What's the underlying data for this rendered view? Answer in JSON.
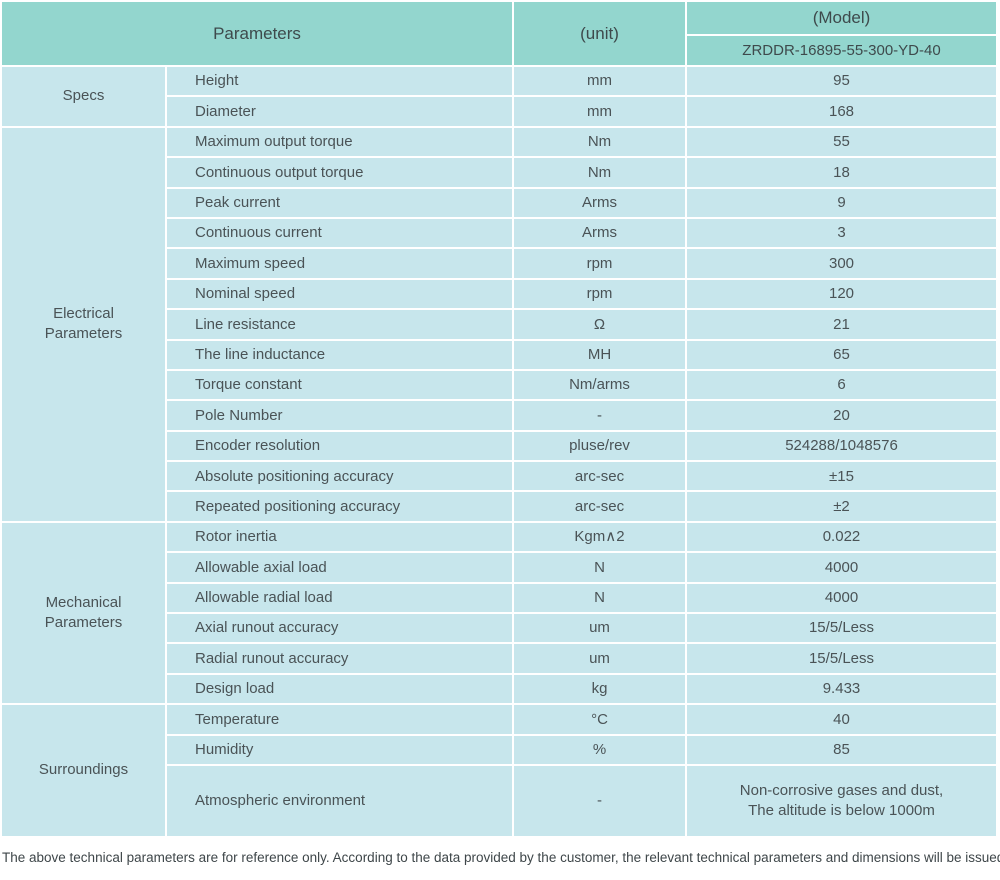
{
  "header": {
    "parameters_label": "Parameters",
    "unit_label": "(unit)",
    "model_label": "(Model)",
    "model_value": "ZRDDR-16895-55-300-YD-40"
  },
  "sections": [
    {
      "name": "Specs",
      "rows": [
        {
          "param": "Height",
          "unit": "mm",
          "value": "95"
        },
        {
          "param": "Diameter",
          "unit": "mm",
          "value": "168"
        }
      ]
    },
    {
      "name": "Electrical Parameters",
      "rows": [
        {
          "param": "Maximum output torque",
          "unit": "Nm",
          "value": "55"
        },
        {
          "param": "Continuous output torque",
          "unit": "Nm",
          "value": "18"
        },
        {
          "param": "Peak current",
          "unit": "Arms",
          "value": "9"
        },
        {
          "param": "Continuous current",
          "unit": "Arms",
          "value": "3"
        },
        {
          "param": "Maximum speed",
          "unit": "rpm",
          "value": "300"
        },
        {
          "param": "Nominal speed",
          "unit": "rpm",
          "value": "120"
        },
        {
          "param": "Line resistance",
          "unit": "Ω",
          "value": "21"
        },
        {
          "param": "The line inductance",
          "unit": "MH",
          "value": "65"
        },
        {
          "param": "Torque constant",
          "unit": "Nm/arms",
          "value": "6"
        },
        {
          "param": "Pole Number",
          "unit": "-",
          "value": "20"
        },
        {
          "param": "Encoder resolution",
          "unit": "pluse/rev",
          "value": "524288/1048576"
        },
        {
          "param": "Absolute positioning accuracy",
          "unit": "arc-sec",
          "value": "±15"
        },
        {
          "param": "Repeated positioning accuracy",
          "unit": "arc-sec",
          "value": "±2"
        }
      ]
    },
    {
      "name": "Mechanical Parameters",
      "rows": [
        {
          "param": "Rotor inertia",
          "unit": "Kgm∧2",
          "value": "0.022"
        },
        {
          "param": "Allowable axial load",
          "unit": "N",
          "value": "4000"
        },
        {
          "param": "Allowable radial load",
          "unit": "N",
          "value": "4000"
        },
        {
          "param": "Axial runout accuracy",
          "unit": "um",
          "value": "15/5/Less"
        },
        {
          "param": "Radial runout accuracy",
          "unit": "um",
          "value": "15/5/Less"
        },
        {
          "param": "Design load",
          "unit": "kg",
          "value": "9.433"
        }
      ]
    },
    {
      "name": "Surroundings",
      "rows": [
        {
          "param": "Temperature",
          "unit": "°C",
          "value": "40"
        },
        {
          "param": "Humidity",
          "unit": "%",
          "value": "85"
        },
        {
          "param": "Atmospheric environment",
          "unit": "-",
          "value": "Non-corrosive gases and dust,\nThe altitude is below 1000m"
        }
      ]
    }
  ],
  "footer": {
    "note": "The above technical parameters are for reference only. According to the data provided by the customer, the relevant technical parameters and dimensions will be issued."
  },
  "colors": {
    "header_bg": "#93d6ce",
    "body_bg": "#c7e6ec",
    "divider": "#ffffff",
    "text": "#4a5356"
  }
}
